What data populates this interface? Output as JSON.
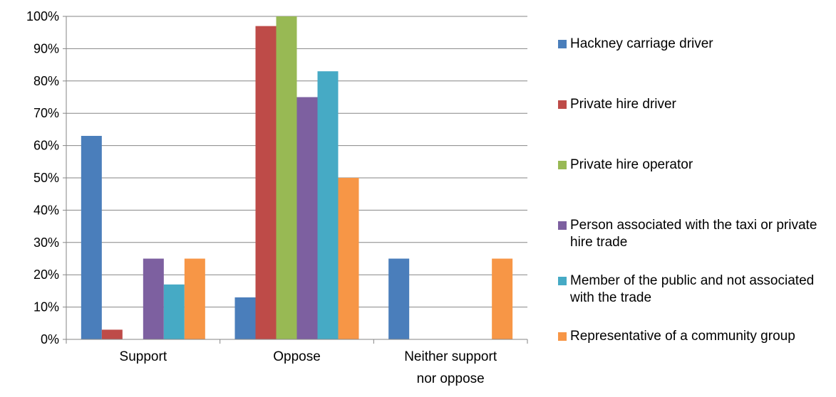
{
  "chart_data": {
    "type": "bar",
    "categories": [
      "Support",
      "Oppose",
      "Neither support\nnor oppose"
    ],
    "series": [
      {
        "name": "Hackney carriage driver",
        "color": "#4a7ebb",
        "values": [
          63,
          13,
          25
        ]
      },
      {
        "name": "Private hire driver",
        "color": "#be4b48",
        "values": [
          3,
          97,
          0
        ]
      },
      {
        "name": "Private hire operator",
        "color": "#98b954",
        "values": [
          0,
          100,
          0
        ]
      },
      {
        "name": "Person associated with the taxi or private hire trade",
        "color": "#7d60a0",
        "values": [
          25,
          75,
          0
        ]
      },
      {
        "name": "Member of the public and not associated with the trade",
        "color": "#46aac5",
        "values": [
          17,
          83,
          0
        ]
      },
      {
        "name": "Representative of a community group",
        "color": "#f79646",
        "values": [
          25,
          50,
          25
        ]
      }
    ],
    "yticks": [
      "0%",
      "10%",
      "20%",
      "30%",
      "40%",
      "50%",
      "60%",
      "70%",
      "80%",
      "90%",
      "100%"
    ],
    "ylim": [
      0,
      100
    ],
    "grid": true,
    "legend_position": "right"
  }
}
